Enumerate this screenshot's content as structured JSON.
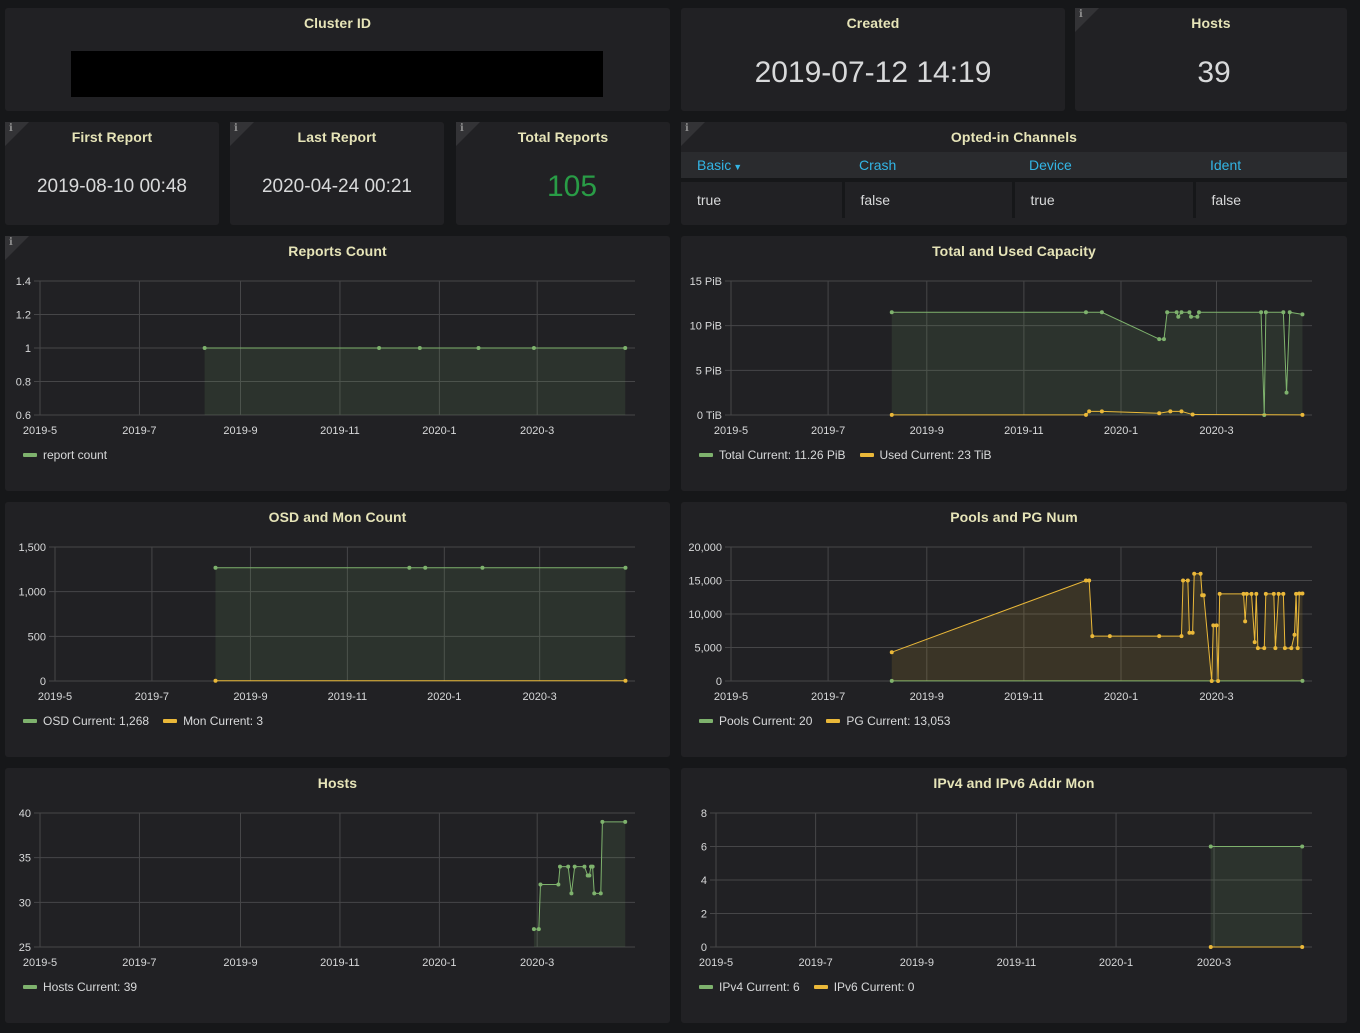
{
  "colors": {
    "green": "#7eb26d",
    "yellow": "#eab839",
    "title": "#e6e4b8",
    "header_link": "#33b5e5",
    "stat_green": "#299c46"
  },
  "stats": {
    "cluster_id": {
      "title": "Cluster ID",
      "value": ""
    },
    "created": {
      "title": "Created",
      "value": "2019-07-12 14:19"
    },
    "hosts": {
      "title": "Hosts",
      "value": "39"
    },
    "first_report": {
      "title": "First Report",
      "value": "2019-08-10 00:48"
    },
    "last_report": {
      "title": "Last Report",
      "value": "2020-04-24 00:21"
    },
    "total_reports": {
      "title": "Total Reports",
      "value": "105"
    }
  },
  "channels": {
    "title": "Opted-in Channels",
    "columns": [
      "Basic",
      "Crash",
      "Device",
      "Ident"
    ],
    "sort_icon": "caret-down-icon",
    "rows": [
      [
        "true",
        "false",
        "true",
        "false"
      ]
    ]
  },
  "info_icon": "info-icon",
  "chart_data": [
    {
      "id": "reports",
      "type": "line",
      "title": "Reports Count",
      "xlabel": "",
      "ylabel": "",
      "xticks": [
        "2019-5",
        "2019-7",
        "2019-9",
        "2019-11",
        "2020-1",
        "2020-3"
      ],
      "xlim": [
        "2019-05-01",
        "2020-04-30"
      ],
      "yticks": [
        "0.6",
        "0.8",
        "1",
        "1.2",
        "1.4"
      ],
      "ylim": [
        0.6,
        1.4
      ],
      "grid": true,
      "legend_position": "bottom-left",
      "series": [
        {
          "name": "report count",
          "legend": "report count",
          "color": "#7eb26d",
          "fill": true,
          "points": [
            [
              "2019-08-10",
              1
            ],
            [
              "2019-11-25",
              1
            ],
            [
              "2019-12-20",
              1
            ],
            [
              "2020-01-25",
              1
            ],
            [
              "2020-02-28",
              1
            ],
            [
              "2020-04-24",
              1
            ]
          ]
        }
      ]
    },
    {
      "id": "capacity",
      "type": "line",
      "title": "Total and Used Capacity",
      "xticks": [
        "2019-5",
        "2019-7",
        "2019-9",
        "2019-11",
        "2020-1",
        "2020-3"
      ],
      "xlim": [
        "2019-05-01",
        "2020-04-30"
      ],
      "yticks": [
        "0 TiB",
        "5 PiB",
        "10 PiB",
        "15 PiB"
      ],
      "ylim": [
        0,
        15
      ],
      "unit": "PiB",
      "grid": true,
      "legend_position": "bottom-left",
      "series": [
        {
          "name": "Total",
          "legend": "Total  Current: 11.26 PiB",
          "color": "#7eb26d",
          "fill": true,
          "points": [
            [
              "2019-08-10",
              11.5
            ],
            [
              "2019-12-10",
              11.5
            ],
            [
              "2019-12-20",
              11.5
            ],
            [
              "2020-01-25",
              8.5
            ],
            [
              "2020-01-28",
              8.5
            ],
            [
              "2020-01-30",
              11.5
            ],
            [
              "2020-02-05",
              11.5
            ],
            [
              "2020-02-06",
              11
            ],
            [
              "2020-02-08",
              11.5
            ],
            [
              "2020-02-13",
              11.5
            ],
            [
              "2020-02-14",
              11
            ],
            [
              "2020-02-18",
              11
            ],
            [
              "2020-02-19",
              11.5
            ],
            [
              "2020-03-29",
              11.5
            ],
            [
              "2020-03-31",
              0
            ],
            [
              "2020-04-01",
              11.5
            ],
            [
              "2020-04-12",
              11.5
            ],
            [
              "2020-04-14",
              2.5
            ],
            [
              "2020-04-16",
              11.5
            ],
            [
              "2020-04-24",
              11.26
            ]
          ]
        },
        {
          "name": "Used",
          "legend": "Used  Current: 23 TiB",
          "color": "#eab839",
          "fill": false,
          "points": [
            [
              "2019-08-10",
              0.02
            ],
            [
              "2019-12-10",
              0.02
            ],
            [
              "2019-12-12",
              0.4
            ],
            [
              "2019-12-20",
              0.4
            ],
            [
              "2020-01-25",
              0.2
            ],
            [
              "2020-02-01",
              0.4
            ],
            [
              "2020-02-08",
              0.4
            ],
            [
              "2020-02-15",
              0.05
            ],
            [
              "2020-04-24",
              0.02
            ]
          ]
        }
      ]
    },
    {
      "id": "osd",
      "type": "line",
      "title": "OSD and Mon Count",
      "xticks": [
        "2019-5",
        "2019-7",
        "2019-9",
        "2019-11",
        "2020-1",
        "2020-3"
      ],
      "xlim": [
        "2019-05-01",
        "2020-04-30"
      ],
      "yticks": [
        "0",
        "500",
        "1,000",
        "1,500"
      ],
      "ylim": [
        0,
        1500
      ],
      "grid": true,
      "legend_position": "bottom-left",
      "series": [
        {
          "name": "OSD",
          "legend": "OSD  Current: 1,268",
          "color": "#7eb26d",
          "fill": true,
          "points": [
            [
              "2019-08-10",
              1268
            ],
            [
              "2019-12-10",
              1268
            ],
            [
              "2019-12-20",
              1268
            ],
            [
              "2020-01-25",
              1268
            ],
            [
              "2020-04-24",
              1268
            ]
          ]
        },
        {
          "name": "Mon",
          "legend": "Mon  Current: 3",
          "color": "#eab839",
          "fill": false,
          "points": [
            [
              "2019-08-10",
              3
            ],
            [
              "2020-04-24",
              3
            ]
          ]
        }
      ]
    },
    {
      "id": "pools",
      "type": "line",
      "title": "Pools and PG Num",
      "xticks": [
        "2019-5",
        "2019-7",
        "2019-9",
        "2019-11",
        "2020-1",
        "2020-3"
      ],
      "xlim": [
        "2019-05-01",
        "2020-04-30"
      ],
      "yticks": [
        "0",
        "5,000",
        "10,000",
        "15,000",
        "20,000"
      ],
      "ylim": [
        0,
        20000
      ],
      "grid": true,
      "legend_position": "bottom-left",
      "series": [
        {
          "name": "Pools",
          "legend": "Pools  Current: 20",
          "color": "#7eb26d",
          "fill": false,
          "points": [
            [
              "2019-08-10",
              20
            ],
            [
              "2020-04-24",
              20
            ]
          ]
        },
        {
          "name": "PG",
          "legend": "PG  Current: 13,053",
          "color": "#eab839",
          "fill": true,
          "points": [
            [
              "2019-08-10",
              4300
            ],
            [
              "2019-12-10",
              15000
            ],
            [
              "2019-12-12",
              15000
            ],
            [
              "2019-12-14",
              6700
            ],
            [
              "2019-12-25",
              6700
            ],
            [
              "2020-01-25",
              6700
            ],
            [
              "2020-02-08",
              6700
            ],
            [
              "2020-02-09",
              15000
            ],
            [
              "2020-02-12",
              15000
            ],
            [
              "2020-02-13",
              7200
            ],
            [
              "2020-02-15",
              7200
            ],
            [
              "2020-02-16",
              16000
            ],
            [
              "2020-02-20",
              16000
            ],
            [
              "2020-02-21",
              12800
            ],
            [
              "2020-02-22",
              12800
            ],
            [
              "2020-02-27",
              0
            ],
            [
              "2020-02-28",
              8300
            ],
            [
              "2020-03-01",
              8300
            ],
            [
              "2020-03-02",
              0
            ],
            [
              "2020-03-03",
              13000
            ],
            [
              "2020-03-18",
              13000
            ],
            [
              "2020-03-19",
              8900
            ],
            [
              "2020-03-20",
              13000
            ],
            [
              "2020-03-23",
              13000
            ],
            [
              "2020-03-25",
              5800
            ],
            [
              "2020-03-26",
              13000
            ],
            [
              "2020-03-27",
              4900
            ],
            [
              "2020-03-31",
              4900
            ],
            [
              "2020-04-01",
              13000
            ],
            [
              "2020-04-06",
              13000
            ],
            [
              "2020-04-07",
              4900
            ],
            [
              "2020-04-09",
              13000
            ],
            [
              "2020-04-12",
              13000
            ],
            [
              "2020-04-13",
              4900
            ],
            [
              "2020-04-17",
              4900
            ],
            [
              "2020-04-19",
              6900
            ],
            [
              "2020-04-20",
              13000
            ],
            [
              "2020-04-21",
              4900
            ],
            [
              "2020-04-22",
              13053
            ],
            [
              "2020-04-24",
              13053
            ]
          ]
        }
      ]
    },
    {
      "id": "hosts",
      "type": "line",
      "title": "Hosts",
      "xticks": [
        "2019-5",
        "2019-7",
        "2019-9",
        "2019-11",
        "2020-1",
        "2020-3"
      ],
      "xlim": [
        "2019-05-01",
        "2020-04-30"
      ],
      "yticks": [
        "25",
        "30",
        "35",
        "40"
      ],
      "ylim": [
        25,
        40
      ],
      "grid": true,
      "legend_position": "bottom-left",
      "series": [
        {
          "name": "Hosts",
          "legend": "Hosts  Current: 39",
          "color": "#7eb26d",
          "fill": true,
          "points": [
            [
              "2020-02-28",
              27
            ],
            [
              "2020-03-02",
              27
            ],
            [
              "2020-03-03",
              32
            ],
            [
              "2020-03-14",
              32
            ],
            [
              "2020-03-15",
              34
            ],
            [
              "2020-03-20",
              34
            ],
            [
              "2020-03-22",
              31
            ],
            [
              "2020-03-24",
              34
            ],
            [
              "2020-03-30",
              34
            ],
            [
              "2020-04-01",
              33
            ],
            [
              "2020-04-02",
              33
            ],
            [
              "2020-04-03",
              34
            ],
            [
              "2020-04-04",
              34
            ],
            [
              "2020-04-05",
              31
            ],
            [
              "2020-04-09",
              31
            ],
            [
              "2020-04-10",
              39
            ],
            [
              "2020-04-24",
              39
            ]
          ]
        }
      ]
    },
    {
      "id": "ipaddr",
      "type": "line",
      "title": "IPv4 and IPv6 Addr Mon",
      "xticks": [
        "2019-5",
        "2019-7",
        "2019-9",
        "2019-11",
        "2020-1",
        "2020-3"
      ],
      "xlim": [
        "2019-05-01",
        "2020-04-30"
      ],
      "yticks": [
        "0",
        "2",
        "4",
        "6",
        "8"
      ],
      "ylim": [
        0,
        8
      ],
      "grid": true,
      "legend_position": "bottom-left",
      "series": [
        {
          "name": "IPv4",
          "legend": "IPv4  Current: 6",
          "color": "#7eb26d",
          "fill": true,
          "points": [
            [
              "2020-02-28",
              6
            ],
            [
              "2020-04-24",
              6
            ]
          ]
        },
        {
          "name": "IPv6",
          "legend": "IPv6  Current: 0",
          "color": "#eab839",
          "fill": false,
          "points": [
            [
              "2020-02-28",
              0
            ],
            [
              "2020-04-24",
              0
            ]
          ]
        }
      ]
    }
  ]
}
